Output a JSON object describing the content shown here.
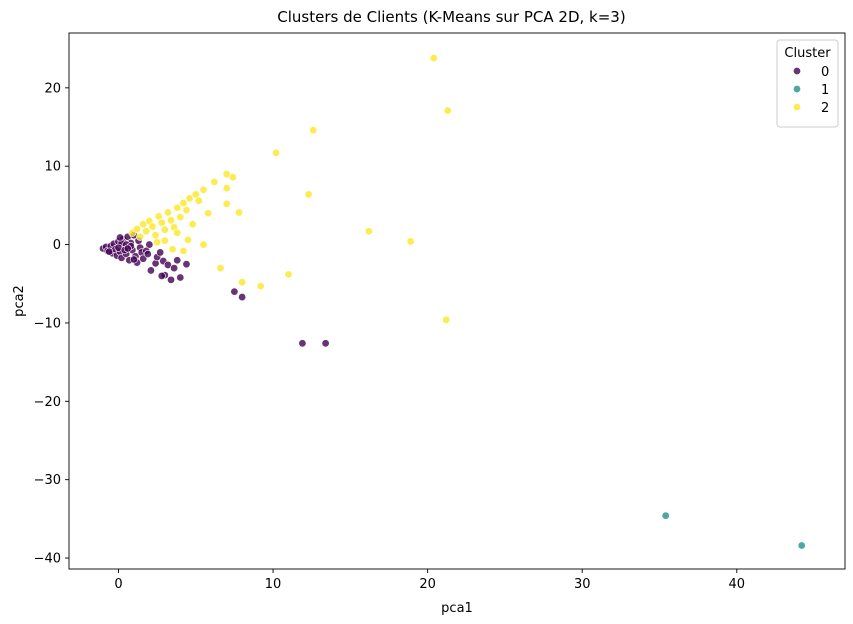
{
  "chart_data": {
    "type": "scatter",
    "title": "Clusters de Clients (K-Means sur PCA 2D, k=3)",
    "xlabel": "pca1",
    "ylabel": "pca2",
    "xlim": [
      -3.2,
      47.0
    ],
    "ylim": [
      -41.4,
      27.0
    ],
    "xticks": [
      0,
      10,
      20,
      30,
      40
    ],
    "yticks": [
      -40,
      -30,
      -20,
      -10,
      0,
      10,
      20
    ],
    "grid": false,
    "legend": {
      "title": "Cluster",
      "placement": "top-right",
      "entries": [
        "0",
        "1",
        "2"
      ]
    },
    "colors": {
      "0": "#440154",
      "1": "#21918c",
      "2": "#fde725"
    },
    "series": [
      {
        "name": "0",
        "points": [
          [
            -1.0,
            -0.5
          ],
          [
            -0.8,
            -0.3
          ],
          [
            -0.7,
            -0.8
          ],
          [
            -0.5,
            -0.2
          ],
          [
            -0.4,
            -1.1
          ],
          [
            -0.3,
            0.1
          ],
          [
            -0.2,
            -0.6
          ],
          [
            -0.1,
            -1.4
          ],
          [
            0.0,
            0.4
          ],
          [
            0.1,
            -0.9
          ],
          [
            0.2,
            -1.7
          ],
          [
            0.3,
            0.7
          ],
          [
            0.4,
            -0.3
          ],
          [
            0.5,
            -1.2
          ],
          [
            0.6,
            1.0
          ],
          [
            0.7,
            -2.0
          ],
          [
            0.8,
            0.2
          ],
          [
            0.9,
            -0.7
          ],
          [
            1.0,
            1.2
          ],
          [
            1.1,
            -1.5
          ],
          [
            1.2,
            -2.3
          ],
          [
            1.3,
            0.5
          ],
          [
            1.4,
            -0.4
          ],
          [
            1.5,
            -1.0
          ],
          [
            0.2,
            0.2
          ],
          [
            0.5,
            0.0
          ],
          [
            0.8,
            -0.2
          ],
          [
            -0.6,
            -0.9
          ],
          [
            0.0,
            -0.4
          ],
          [
            0.4,
            -0.7
          ],
          [
            1.6,
            -1.8
          ],
          [
            1.8,
            -0.8
          ],
          [
            0.1,
            0.9
          ],
          [
            0.6,
            -0.5
          ],
          [
            1.0,
            -1.9
          ],
          [
            1.9,
            -1.2
          ],
          [
            2.0,
            0.0
          ],
          [
            2.1,
            -3.3
          ],
          [
            2.4,
            -2.4
          ],
          [
            2.5,
            -1.6
          ],
          [
            2.7,
            -1.0
          ],
          [
            2.9,
            -2.1
          ],
          [
            3.0,
            -3.9
          ],
          [
            3.2,
            -2.6
          ],
          [
            3.4,
            -4.5
          ],
          [
            3.6,
            -3.0
          ],
          [
            3.8,
            -2.0
          ],
          [
            4.0,
            -4.2
          ],
          [
            4.4,
            -2.5
          ],
          [
            2.8,
            -4.0
          ],
          [
            7.5,
            -6.0
          ],
          [
            8.0,
            -6.7
          ],
          [
            11.9,
            -12.6
          ],
          [
            13.4,
            -12.6
          ]
        ]
      },
      {
        "name": "1",
        "points": [
          [
            35.4,
            -34.6
          ],
          [
            44.2,
            -38.4
          ]
        ]
      },
      {
        "name": "2",
        "points": [
          [
            0.9,
            1.5
          ],
          [
            1.2,
            2.0
          ],
          [
            1.4,
            1.0
          ],
          [
            1.6,
            2.6
          ],
          [
            1.8,
            1.7
          ],
          [
            2.0,
            3.0
          ],
          [
            2.2,
            2.3
          ],
          [
            2.4,
            1.2
          ],
          [
            2.6,
            3.6
          ],
          [
            2.8,
            2.8
          ],
          [
            3.0,
            1.9
          ],
          [
            3.2,
            4.1
          ],
          [
            3.4,
            3.1
          ],
          [
            3.6,
            2.2
          ],
          [
            3.8,
            4.7
          ],
          [
            4.0,
            3.5
          ],
          [
            4.2,
            5.3
          ],
          [
            4.4,
            4.4
          ],
          [
            4.6,
            5.9
          ],
          [
            4.8,
            2.6
          ],
          [
            5.0,
            6.4
          ],
          [
            5.2,
            5.6
          ],
          [
            5.5,
            7.0
          ],
          [
            5.8,
            4.0
          ],
          [
            6.2,
            8.0
          ],
          [
            6.6,
            -3.0
          ],
          [
            7.0,
            9.0
          ],
          [
            7.0,
            7.2
          ],
          [
            7.0,
            5.2
          ],
          [
            7.4,
            8.6
          ],
          [
            7.8,
            4.1
          ],
          [
            8.0,
            -4.8
          ],
          [
            9.2,
            -5.3
          ],
          [
            10.2,
            11.7
          ],
          [
            11.0,
            -3.8
          ],
          [
            12.3,
            6.4
          ],
          [
            12.6,
            14.6
          ],
          [
            16.2,
            1.7
          ],
          [
            18.9,
            0.4
          ],
          [
            20.4,
            23.8
          ],
          [
            21.2,
            -9.6
          ],
          [
            21.3,
            17.1
          ],
          [
            3.0,
            0.5
          ],
          [
            3.5,
            -0.6
          ],
          [
            4.5,
            0.6
          ],
          [
            5.5,
            0.0
          ],
          [
            2.5,
            0.3
          ],
          [
            3.8,
            1.5
          ],
          [
            4.2,
            -0.8
          ]
        ]
      }
    ]
  }
}
